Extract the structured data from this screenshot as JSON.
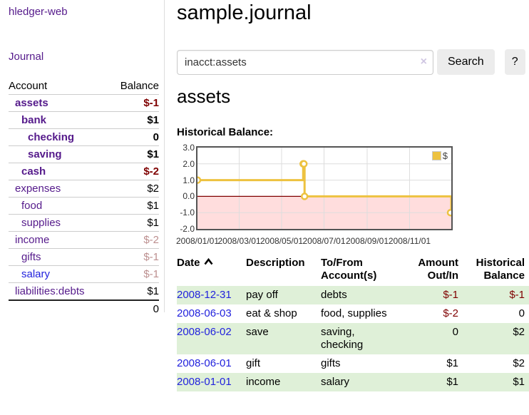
{
  "app": {
    "title": "hledger-web"
  },
  "nav": {
    "journal": "Journal"
  },
  "sidebar": {
    "header": {
      "account": "Account",
      "balance": "Balance"
    },
    "accounts": [
      {
        "name": "assets",
        "balance": "$-1"
      },
      {
        "name": "bank",
        "balance": "$1"
      },
      {
        "name": "checking",
        "balance": "0"
      },
      {
        "name": "saving",
        "balance": "$1"
      },
      {
        "name": "cash",
        "balance": "$-2"
      },
      {
        "name": "expenses",
        "balance": "$2"
      },
      {
        "name": "food",
        "balance": "$1"
      },
      {
        "name": "supplies",
        "balance": "$1"
      },
      {
        "name": "income",
        "balance": "$-2"
      },
      {
        "name": "gifts",
        "balance": "$-1"
      },
      {
        "name": "salary",
        "balance": "$-1"
      },
      {
        "name": "liabilities:debts",
        "balance": "$1"
      }
    ],
    "total": "0"
  },
  "main": {
    "title": "sample.journal",
    "search": {
      "value": "inacct:assets",
      "clear": "×",
      "submit": "Search",
      "help": "?"
    },
    "account_heading": "assets",
    "chart_title": "Historical Balance:"
  },
  "chart_data": {
    "type": "line",
    "step": true,
    "title": "Historical Balance:",
    "x": [
      "2008/01/01",
      "2008/06/01",
      "2008/06/02",
      "2008/06/03",
      "2008/12/31"
    ],
    "series": [
      {
        "name": "$",
        "values": [
          1,
          2,
          2,
          0,
          -1
        ]
      }
    ],
    "xlim": [
      "2008/01/01",
      "2008/12/31"
    ],
    "ylim": [
      -2,
      3
    ],
    "xticks": [
      "2008/01/01",
      "2008/03/01",
      "2008/05/01",
      "2008/07/01",
      "2008/09/01",
      "2008/11/01"
    ],
    "yticks": [
      3,
      2,
      1,
      0,
      -1,
      -2
    ],
    "ytick_labels": [
      "3.0",
      "2.0",
      "1.0",
      "0.0",
      "-1.0",
      "-2.0"
    ],
    "legend": {
      "label": "$",
      "position": "top-right"
    },
    "colors": {
      "series": "#edc240",
      "negative_region": "#ffdddd",
      "zero_line": "#800000",
      "grid": "#dddddd",
      "border": "#545454"
    }
  },
  "register": {
    "columns": {
      "date": "Date",
      "description": "Description",
      "tofrom": "To/From Account(s)",
      "amount": "Amount Out/In",
      "balance": "Historical Balance"
    },
    "rows": [
      {
        "date": "2008-12-31",
        "description": "pay off",
        "accounts": "debts",
        "amount": "$-1",
        "balance": "$-1"
      },
      {
        "date": "2008-06-03",
        "description": "eat & shop",
        "accounts": "food, supplies",
        "amount": "$-2",
        "balance": "0"
      },
      {
        "date": "2008-06-02",
        "description": "save",
        "accounts": "saving, checking",
        "amount": "0",
        "balance": "$2"
      },
      {
        "date": "2008-06-01",
        "description": "gift",
        "accounts": "gifts",
        "amount": "$1",
        "balance": "$2"
      },
      {
        "date": "2008-01-01",
        "description": "income",
        "accounts": "salary",
        "amount": "$1",
        "balance": "$1"
      }
    ]
  },
  "colors": {
    "link_purple": "#551a8b",
    "link_blue": "#2222dd",
    "negative_strong": "#7f0000",
    "negative_soft": "#bc8f8f",
    "row_highlight_green": "#dff0d8",
    "button_gray": "#ececec"
  }
}
